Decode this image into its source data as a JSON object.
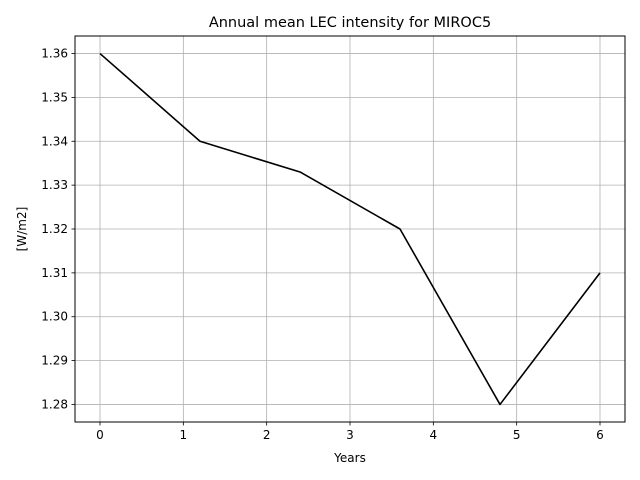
{
  "chart_data": {
    "type": "line",
    "title": "Annual mean LEC intensity for MIROC5",
    "xlabel": "Years",
    "ylabel": "[W/m2]",
    "x": [
      0,
      1.2,
      2.4,
      3.6,
      4.8,
      6
    ],
    "series": [
      {
        "values": [
          1.36,
          1.34,
          1.333,
          1.32,
          1.28,
          1.31
        ],
        "color": "#000000"
      }
    ],
    "xlim": [
      -0.3,
      6.3
    ],
    "ylim": [
      1.276,
      1.364
    ],
    "xticks": [
      0,
      1,
      2,
      3,
      4,
      5,
      6
    ],
    "xtick_labels": [
      "0",
      "1",
      "2",
      "3",
      "4",
      "5",
      "6"
    ],
    "yticks": [
      1.28,
      1.29,
      1.3,
      1.31,
      1.32,
      1.33,
      1.34,
      1.35,
      1.36
    ],
    "ytick_labels": [
      "1.28",
      "1.29",
      "1.30",
      "1.31",
      "1.32",
      "1.33",
      "1.34",
      "1.35",
      "1.36"
    ],
    "grid": true,
    "legend": "none"
  }
}
